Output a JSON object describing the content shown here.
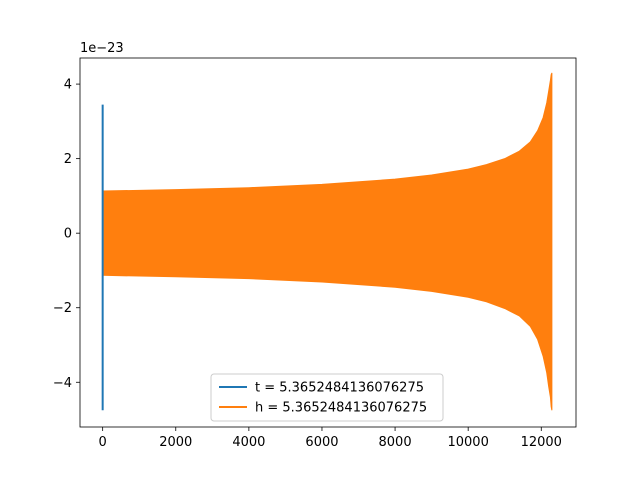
{
  "chart_data": {
    "type": "line",
    "title": "",
    "xlabel": "",
    "ylabel": "",
    "y_offset_label": "1e−23",
    "xlim": [
      -620,
      12950
    ],
    "ylim": [
      -5.2,
      4.7
    ],
    "x_ticks": [
      0,
      2000,
      4000,
      6000,
      8000,
      10000,
      12000
    ],
    "x_tick_labels": [
      "0",
      "2000",
      "4000",
      "6000",
      "8000",
      "10000",
      "12000"
    ],
    "y_ticks": [
      -4,
      -2,
      0,
      2,
      4
    ],
    "y_tick_labels": [
      "−4",
      "−2",
      "0",
      "2",
      "4"
    ],
    "grid": false,
    "legend_position": "lower center",
    "series": [
      {
        "name": "t = 5.3652484136076275",
        "color": "#1f77b4",
        "segments": [
          {
            "x": 0,
            "y_min": -4.75,
            "y_max": 3.45
          }
        ]
      },
      {
        "name": "h = 5.3652484136076275",
        "color": "#ff7f0e",
        "envelope": {
          "x": [
            0,
            2000,
            4000,
            6000,
            8000,
            9000,
            10000,
            10500,
            11000,
            11400,
            11700,
            11900,
            12050,
            12150,
            12200,
            12250,
            12270,
            12290
          ],
          "upper": [
            1.13,
            1.17,
            1.22,
            1.31,
            1.45,
            1.56,
            1.72,
            1.84,
            2.0,
            2.2,
            2.45,
            2.75,
            3.1,
            3.5,
            3.8,
            4.1,
            4.25,
            4.3
          ],
          "lower": [
            -1.13,
            -1.17,
            -1.22,
            -1.31,
            -1.45,
            -1.56,
            -1.72,
            -1.84,
            -2.02,
            -2.22,
            -2.5,
            -2.85,
            -3.3,
            -3.75,
            -4.1,
            -4.4,
            -4.65,
            -4.75
          ]
        }
      }
    ]
  }
}
